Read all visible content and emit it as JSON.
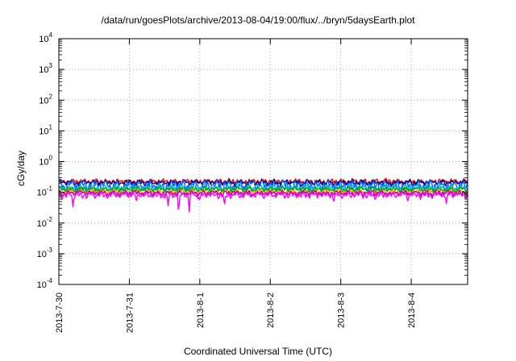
{
  "chart_data": {
    "type": "line",
    "title": "/data/run/goesPlots/archive/2013-08-04/19:00/flux/../bryn/5daysEarth.plot",
    "xlabel": "Coordinated Universal Time (UTC)",
    "ylabel": "cGy/day",
    "yscale": "log",
    "ylim": [
      0.0001,
      10000
    ],
    "ytick_exponents": [
      -4,
      -3,
      -2,
      -1,
      0,
      1,
      2,
      3,
      4
    ],
    "xlim_days": [
      0,
      5.8
    ],
    "xticks": [
      {
        "label": "2013-7-30",
        "day": 0
      },
      {
        "label": "2013-7-31",
        "day": 1
      },
      {
        "label": "2013-8-1",
        "day": 2
      },
      {
        "label": "2013-8-2",
        "day": 3
      },
      {
        "label": "2013-8-3",
        "day": 4
      },
      {
        "label": "2013-8-4",
        "day": 5
      }
    ],
    "grid": true,
    "legend": "none",
    "series": [
      {
        "color": "#ff0000",
        "base": 0.23,
        "amp": 0.035
      },
      {
        "color": "#000080",
        "base": 0.21,
        "amp": 0.035
      },
      {
        "color": "#0066ff",
        "base": 0.17,
        "amp": 0.06
      },
      {
        "color": "#00c8c8",
        "base": 0.14,
        "amp": 0.025
      },
      {
        "color": "#00a000",
        "base": 0.125,
        "amp": 0.02
      },
      {
        "color": "#ff9900",
        "base": 0.105,
        "amp": 0.015
      },
      {
        "color": "#b000b0",
        "base": 0.095,
        "amp": 0.015
      },
      {
        "color": "#ff00ff",
        "base": 0.082,
        "amp": 0.015,
        "dips": [
          [
            0.2,
            0.032
          ],
          [
            1.1,
            0.05
          ],
          [
            1.55,
            0.035
          ],
          [
            1.7,
            0.0085
          ],
          [
            1.85,
            0.018
          ],
          [
            2.0,
            0.05
          ],
          [
            2.35,
            0.03
          ],
          [
            3.9,
            0.045
          ],
          [
            4.95,
            0.05
          ],
          [
            5.5,
            0.04
          ]
        ]
      }
    ]
  }
}
